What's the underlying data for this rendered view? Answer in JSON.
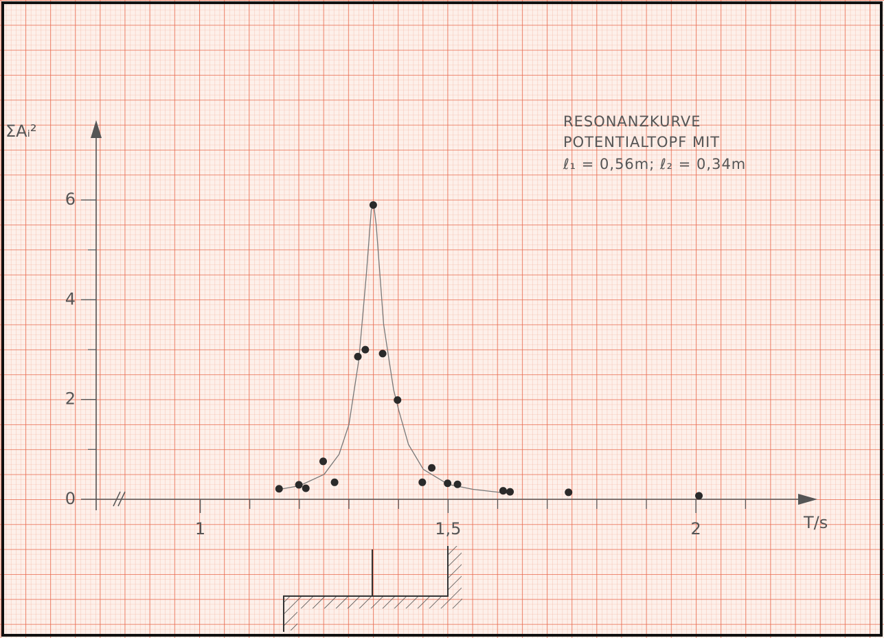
{
  "chart_data": {
    "type": "scatter",
    "title": "RESONANZKURVE",
    "subtitle": [
      "POTENTIALTOPF MIT",
      "ℓ₁ = 0,56m; ℓ₂ = 0,34m"
    ],
    "x_label": "T/s",
    "y_label": "ΣAᵢ²",
    "color": "#2a2a2a",
    "line_color": "#777777",
    "x": [
      1.159,
      1.199,
      1.213,
      1.248,
      1.271,
      1.318,
      1.333,
      1.349,
      1.368,
      1.398,
      1.448,
      1.467,
      1.499,
      1.519,
      1.611,
      1.625,
      1.743,
      2.006
    ],
    "values": [
      0.21,
      0.29,
      0.22,
      0.76,
      0.34,
      2.86,
      3.0,
      5.9,
      2.92,
      1.99,
      0.34,
      0.63,
      0.32,
      0.3,
      0.17,
      0.15,
      0.14,
      0.07
    ],
    "curve": {
      "x": [
        1.16,
        1.2,
        1.25,
        1.28,
        1.3,
        1.32,
        1.335,
        1.345,
        1.35,
        1.355,
        1.37,
        1.39,
        1.4,
        1.42,
        1.45,
        1.5,
        1.55,
        1.62
      ],
      "values": [
        0.2,
        0.27,
        0.5,
        0.9,
        1.5,
        2.8,
        4.5,
        5.8,
        5.9,
        5.5,
        3.5,
        2.2,
        1.8,
        1.1,
        0.6,
        0.3,
        0.2,
        0.12
      ]
    },
    "xlim": [
      0.79,
      2.245
    ],
    "ylim": [
      0,
      7.6
    ],
    "xticks": [
      1,
      {
        "value": 1.5,
        "label": "1,5"
      },
      2
    ],
    "x_minor_ticks": [
      1.1,
      1.2,
      1.3,
      1.4,
      1.6,
      1.7,
      1.8,
      1.9,
      2.1
    ],
    "yticks": [
      0,
      2,
      4,
      6
    ],
    "y_minor_ticks": [
      1,
      3,
      5
    ]
  }
}
